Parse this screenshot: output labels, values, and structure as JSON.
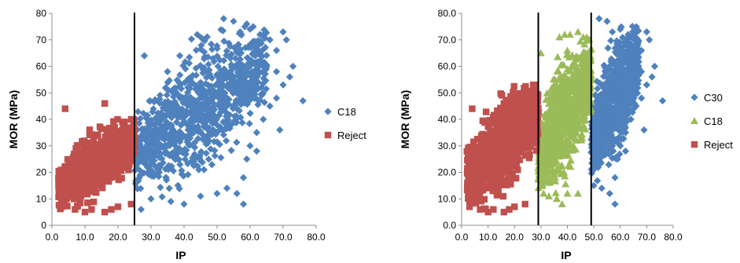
{
  "chart_data": [
    {
      "type": "scatter",
      "title": "",
      "xlabel": "IP",
      "ylabel": "MOR (MPa)",
      "xlim": [
        0,
        80
      ],
      "ylim": [
        0,
        80
      ],
      "x_ticks": [
        "0.0",
        "10.0",
        "20.0",
        "30.0",
        "40.0",
        "50.0",
        "60.0",
        "70.0",
        "80.0"
      ],
      "y_ticks": [
        "0",
        "10",
        "20",
        "30",
        "40",
        "50",
        "60",
        "70",
        "80"
      ],
      "threshold_lines_x": [
        25
      ],
      "legend_position": "right",
      "series": [
        {
          "name": "C18",
          "marker": "diamond",
          "color": "#4f81bd",
          "dense_region": {
            "x_range": [
              25,
              65
            ],
            "y_range": [
              8,
              76
            ]
          },
          "outliers": [
            [
              28,
              64
            ],
            [
              35,
              58
            ],
            [
              44,
              72
            ],
            [
              52,
              78
            ],
            [
              55,
              77
            ],
            [
              57,
              73
            ],
            [
              60,
              74
            ],
            [
              63,
              72
            ],
            [
              66,
              70
            ],
            [
              68,
              66
            ],
            [
              70,
              73
            ],
            [
              71,
              70
            ],
            [
              65,
              60
            ],
            [
              68,
              58
            ],
            [
              72,
              56
            ],
            [
              73,
              60
            ],
            [
              76,
              47
            ],
            [
              70,
              53
            ],
            [
              68,
              48
            ],
            [
              66,
              45
            ],
            [
              64,
              40
            ],
            [
              62,
              35
            ],
            [
              60,
              30
            ],
            [
              58,
              18
            ],
            [
              58,
              8
            ],
            [
              40,
              8
            ],
            [
              36,
              9
            ],
            [
              30,
              10
            ],
            [
              27,
              6
            ],
            [
              45,
              11
            ],
            [
              53,
              14
            ],
            [
              56,
              12
            ],
            [
              50,
              12
            ],
            [
              62,
              28
            ],
            [
              59,
              25
            ],
            [
              69,
              36
            ]
          ]
        },
        {
          "name": "Reject",
          "marker": "square",
          "color": "#c0504d",
          "dense_region": {
            "x_range": [
              2,
              25
            ],
            "y_range": [
              5,
              40
            ]
          },
          "outliers": [
            [
              4,
              44
            ],
            [
              16,
              46
            ],
            [
              3,
              9
            ],
            [
              3,
              7
            ],
            [
              7,
              6
            ],
            [
              10,
              5
            ],
            [
              12,
              6
            ],
            [
              16,
              5
            ],
            [
              18,
              6
            ],
            [
              20,
              7
            ],
            [
              24,
              8
            ],
            [
              24,
              40
            ],
            [
              22,
              39
            ],
            [
              19,
              37
            ],
            [
              12,
              30
            ],
            [
              11,
              28
            ],
            [
              15,
              31
            ],
            [
              13,
              25
            ],
            [
              9,
              22
            ],
            [
              6,
              15
            ]
          ]
        }
      ]
    },
    {
      "type": "scatter",
      "title": "",
      "xlabel": "IP",
      "ylabel": "MOR (MPa)",
      "xlim": [
        0,
        80
      ],
      "ylim": [
        0,
        80
      ],
      "x_ticks": [
        "0.0",
        "10.0",
        "20.0",
        "30.0",
        "40.0",
        "50.0",
        "60.0",
        "70.0",
        "80.0"
      ],
      "y_ticks": [
        "0.0",
        "10.0",
        "20.0",
        "30.0",
        "40.0",
        "50.0",
        "60.0",
        "70.0",
        "80.0"
      ],
      "threshold_lines_x": [
        29,
        49
      ],
      "legend_position": "right",
      "series": [
        {
          "name": "C30",
          "marker": "diamond",
          "color": "#4f81bd",
          "dense_region": {
            "x_range": [
              49,
              67
            ],
            "y_range": [
              15,
              76
            ]
          },
          "outliers": [
            [
              52,
              78
            ],
            [
              55,
              77
            ],
            [
              57,
              73
            ],
            [
              60,
              74
            ],
            [
              63,
              72
            ],
            [
              66,
              70
            ],
            [
              68,
              66
            ],
            [
              70,
              73
            ],
            [
              71,
              70
            ],
            [
              68,
              58
            ],
            [
              72,
              56
            ],
            [
              73,
              60
            ],
            [
              76,
              47
            ],
            [
              70,
              53
            ],
            [
              68,
              48
            ],
            [
              66,
              45
            ],
            [
              64,
              40
            ],
            [
              62,
              35
            ],
            [
              60,
              30
            ],
            [
              58,
              18
            ],
            [
              58,
              8
            ],
            [
              53,
              14
            ],
            [
              56,
              12
            ],
            [
              50,
              15
            ],
            [
              62,
              28
            ],
            [
              59,
              25
            ],
            [
              69,
              36
            ]
          ]
        },
        {
          "name": "C18",
          "marker": "triangle",
          "color": "#9bbb59",
          "dense_region": {
            "x_range": [
              29,
              49
            ],
            "y_range": [
              9,
              71
            ]
          },
          "outliers": [
            [
              30,
              65
            ],
            [
              37,
              71
            ],
            [
              39,
              72
            ],
            [
              41,
              72
            ],
            [
              44,
              73
            ],
            [
              46,
              71
            ],
            [
              38,
              8
            ],
            [
              36,
              10
            ],
            [
              31,
              12
            ],
            [
              33,
              11
            ],
            [
              40,
              12
            ],
            [
              44,
              12
            ]
          ]
        },
        {
          "name": "Reject",
          "marker": "square",
          "color": "#c0504d",
          "dense_region": {
            "x_range": [
              2,
              29
            ],
            "y_range": [
              5,
              53
            ]
          },
          "outliers": [
            [
              4,
              44
            ],
            [
              16,
              46
            ],
            [
              3,
              9
            ],
            [
              3,
              7
            ],
            [
              7,
              6
            ],
            [
              10,
              5
            ],
            [
              12,
              6
            ],
            [
              16,
              5
            ],
            [
              18,
              6
            ],
            [
              20,
              7
            ],
            [
              24,
              8
            ],
            [
              28,
              53
            ],
            [
              27,
              50
            ],
            [
              26,
              48
            ],
            [
              24,
              40
            ],
            [
              22,
              39
            ],
            [
              19,
              37
            ],
            [
              12,
              30
            ],
            [
              11,
              28
            ],
            [
              15,
              31
            ],
            [
              13,
              25
            ],
            [
              9,
              22
            ],
            [
              6,
              15
            ]
          ]
        }
      ]
    }
  ]
}
